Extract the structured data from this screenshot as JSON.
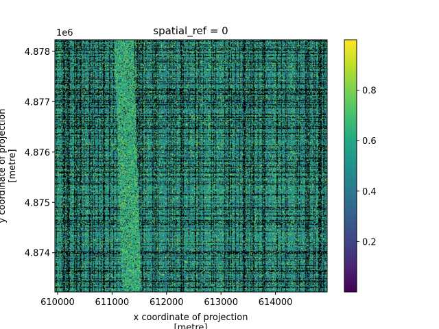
{
  "chart_data": {
    "type": "heatmap",
    "title": "spatial_ref = 0",
    "xlabel_line1": "x coordinate of projection",
    "xlabel_line2": "[metre]",
    "ylabel_line1": "y coordinate of projection",
    "ylabel_line2": "[metre]",
    "y_offset_label": "1e6",
    "xlim": [
      609950,
      614950
    ],
    "ylim": [
      4873220,
      4878230
    ],
    "x_ticks": [
      610000,
      611000,
      612000,
      613000,
      614000
    ],
    "x_tick_labels": [
      "610000",
      "611000",
      "612000",
      "613000",
      "614000"
    ],
    "y_ticks": [
      4874000,
      4875000,
      4876000,
      4877000,
      4878000
    ],
    "y_tick_labels": [
      "4.874",
      "4.875",
      "4.876",
      "4.877",
      "4.878"
    ],
    "colormap": "viridis",
    "nodata_color": "#000000",
    "value_range": [
      0.0,
      1.0
    ],
    "colorbar_ticks": [
      0.2,
      0.4,
      0.6,
      0.8
    ],
    "colorbar_tick_labels": [
      "0.2",
      "0.4",
      "0.6",
      "0.8"
    ],
    "colors": {
      "viridis_low": "#440154",
      "viridis_mid": "#21918c",
      "viridis_high": "#fde725"
    }
  }
}
